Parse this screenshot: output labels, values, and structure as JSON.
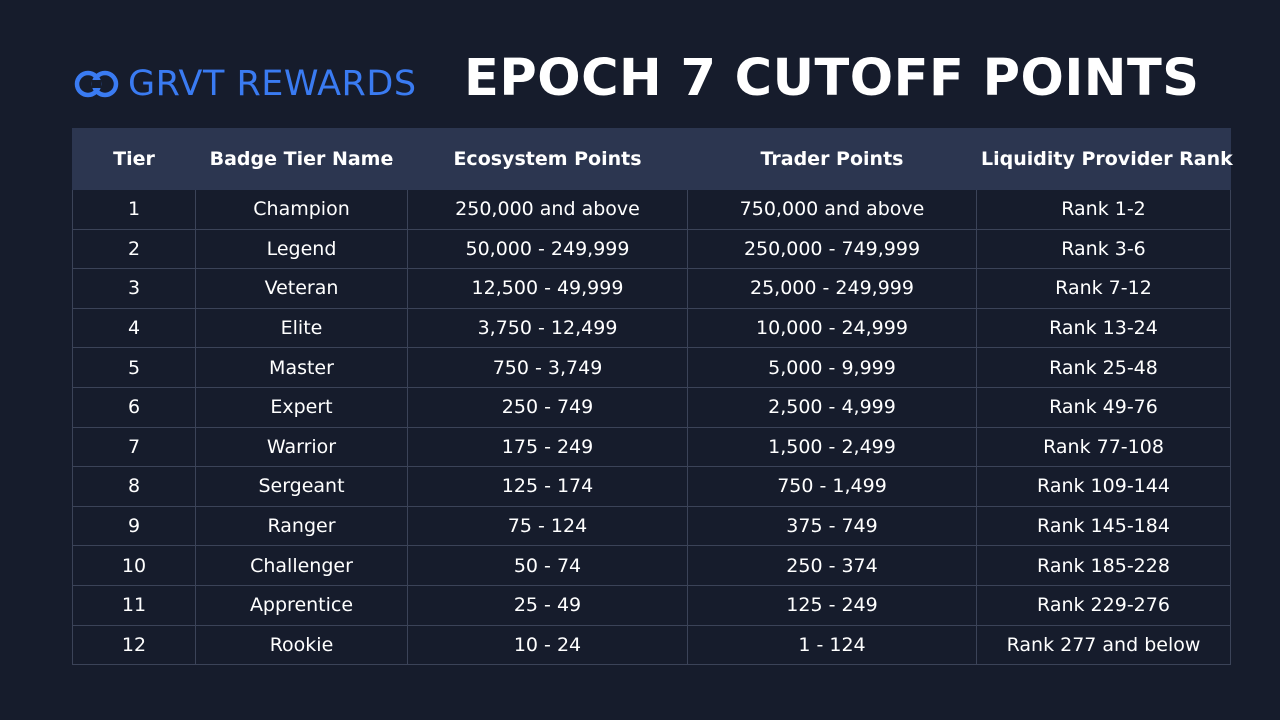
{
  "header": {
    "brand_text": "GRVT REWARDS",
    "brand_icon": "grvt-logo-icon",
    "title": "EPOCH 7 CUTOFF POINTS"
  },
  "colors": {
    "background": "#161c2c",
    "header_row": "#2c3650",
    "grid_line": "#3b4358",
    "brand_blue": "#3a7bf2",
    "text": "#ffffff"
  },
  "table": {
    "columns": [
      "Tier",
      "Badge Tier Name",
      "Ecosystem Points",
      "Trader Points",
      "Liquidity Provider Rank"
    ],
    "rows": [
      [
        "1",
        "Champion",
        "250,000 and above",
        "750,000 and above",
        "Rank 1-2"
      ],
      [
        "2",
        "Legend",
        "50,000 - 249,999",
        "250,000 - 749,999",
        "Rank 3-6"
      ],
      [
        "3",
        "Veteran",
        "12,500 - 49,999",
        "25,000 - 249,999",
        "Rank 7-12"
      ],
      [
        "4",
        "Elite",
        "3,750 - 12,499",
        "10,000 - 24,999",
        "Rank 13-24"
      ],
      [
        "5",
        "Master",
        "750 - 3,749",
        "5,000 - 9,999",
        "Rank 25-48"
      ],
      [
        "6",
        "Expert",
        "250 - 749",
        "2,500 - 4,999",
        "Rank 49-76"
      ],
      [
        "7",
        "Warrior",
        "175 - 249",
        "1,500 - 2,499",
        "Rank 77-108"
      ],
      [
        "8",
        "Sergeant",
        "125 - 174",
        "750 - 1,499",
        "Rank 109-144"
      ],
      [
        "9",
        "Ranger",
        "75 - 124",
        "375 - 749",
        "Rank 145-184"
      ],
      [
        "10",
        "Challenger",
        "50 - 74",
        "250 - 374",
        "Rank 185-228"
      ],
      [
        "11",
        "Apprentice",
        "25 - 49",
        "125 - 249",
        "Rank 229-276"
      ],
      [
        "12",
        "Rookie",
        "10 - 24",
        "1 - 124",
        "Rank 277 and below"
      ]
    ]
  }
}
